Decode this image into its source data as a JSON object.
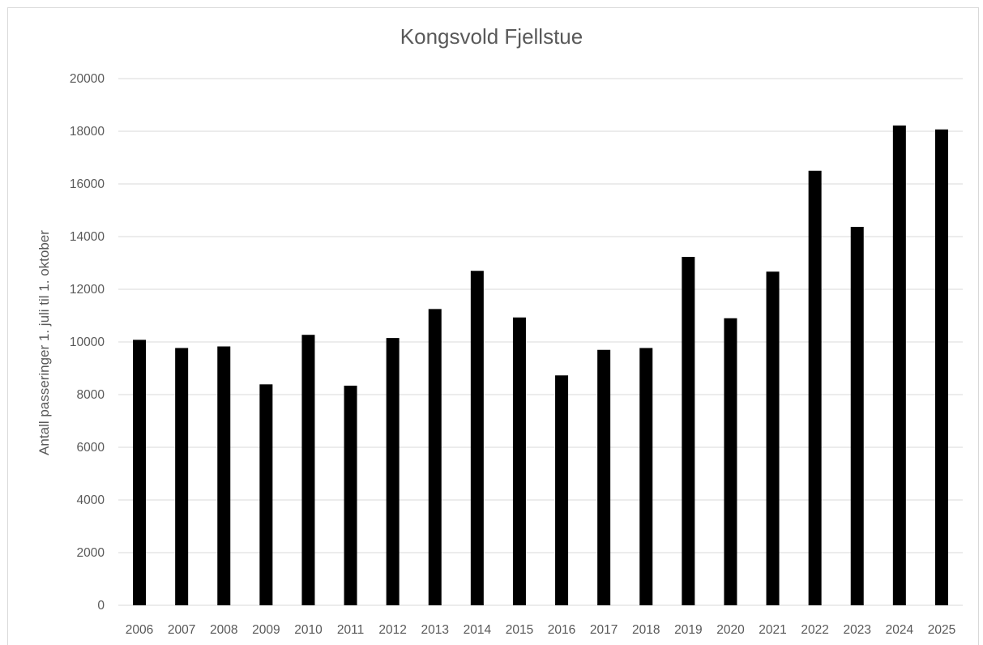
{
  "chart_data": {
    "type": "bar",
    "title": "Kongsvold Fjellstue",
    "xlabel": "",
    "ylabel": "Antall passeringer 1. juli til 1. oktober",
    "ylim": [
      0,
      20000
    ],
    "yticks": [
      0,
      2000,
      4000,
      6000,
      8000,
      10000,
      12000,
      14000,
      16000,
      18000,
      20000
    ],
    "grid": true,
    "bar_color": "#000000",
    "categories": [
      "2006",
      "2007",
      "2008",
      "2009",
      "2010",
      "2011",
      "2012",
      "2013",
      "2014",
      "2015",
      "2016",
      "2017",
      "2018",
      "2019",
      "2020",
      "2021",
      "2022",
      "2023",
      "2024",
      "2025"
    ],
    "values": [
      10080,
      9770,
      9830,
      8390,
      10270,
      8340,
      10150,
      11250,
      12700,
      10930,
      8730,
      9700,
      9770,
      13230,
      10900,
      12670,
      16500,
      14370,
      18220,
      18070
    ]
  }
}
